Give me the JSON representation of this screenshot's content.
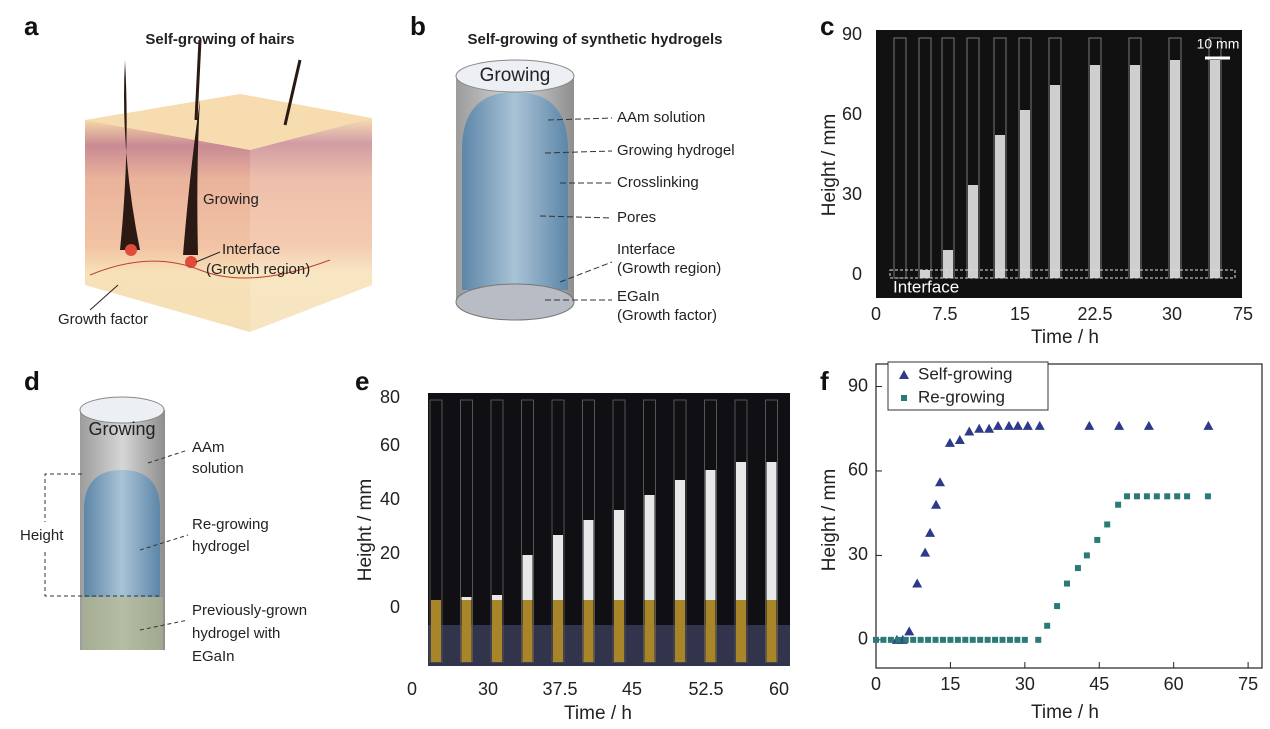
{
  "panel_a": {
    "letter": "a",
    "title": "Self-growing of hairs",
    "growing": "Growing",
    "interface": [
      "Interface",
      "(Growth region)"
    ],
    "growth_factor": "Growth factor"
  },
  "panel_b": {
    "letter": "b",
    "title": "Self-growing of synthetic hydrogels",
    "top": "Growing",
    "labels": [
      [
        "AAm solution"
      ],
      [
        "Growing hydrogel"
      ],
      [
        "Crosslinking"
      ],
      [
        "Pores"
      ],
      [
        "Interface",
        "(Growth region)"
      ],
      [
        "EGaIn",
        "(Growth factor)"
      ]
    ]
  },
  "panel_c": {
    "letter": "c",
    "scale_bar": "10 mm",
    "interface": "Interface",
    "y_label": "Height / mm",
    "x_label": "Time / h",
    "yticks": [
      "0",
      "30",
      "60",
      "90"
    ],
    "xticks": [
      "0",
      "7.5",
      "15",
      "22.5",
      "30",
      "75"
    ]
  },
  "panel_d": {
    "letter": "d",
    "top": "Growing",
    "height": "Height",
    "labels": [
      [
        "AAm",
        "solution"
      ],
      [
        "Re-growing",
        "hydrogel"
      ],
      [
        "Previously-grown",
        "hydrogel with",
        "EGaIn"
      ]
    ]
  },
  "panel_e": {
    "letter": "e",
    "y_label": "Height / mm",
    "x_label": "Time / h",
    "yticks": [
      "0",
      "20",
      "40",
      "60",
      "80"
    ],
    "xticks": [
      "0",
      "30",
      "37.5",
      "45",
      "52.5",
      "60"
    ]
  },
  "chart_data": {
    "type": "scatter",
    "panel_label": "f",
    "x_label": "Time / h",
    "y_label": "Height / mm",
    "xlim": [
      0,
      77.8
    ],
    "ylim": [
      -10,
      98
    ],
    "xticks": [
      0,
      15,
      30,
      45,
      60,
      75
    ],
    "yticks": [
      0,
      30,
      60,
      90
    ],
    "legend": "upper left",
    "series": [
      {
        "name": "Self-growing",
        "color": "#2e3a87",
        "marker": "triangle",
        "x": [
          4.2,
          5.4,
          6.7,
          8.3,
          9.9,
          10.9,
          12.1,
          12.9,
          14.9,
          16.9,
          18.8,
          20.8,
          22.8,
          24.6,
          26.8,
          28.6,
          30.6,
          33,
          43,
          49,
          55,
          67
        ],
        "values": [
          0,
          0,
          3,
          20,
          31,
          38,
          48,
          56,
          70,
          71,
          74,
          75,
          75,
          76,
          76,
          76,
          76,
          76,
          76,
          76,
          76,
          76
        ]
      },
      {
        "name": "Re-growing",
        "color": "#2a7a78",
        "marker": "square",
        "x": [
          0,
          1.5,
          3,
          4.5,
          6,
          7.5,
          9,
          10.5,
          12,
          13.5,
          15,
          16.5,
          18,
          19.5,
          21,
          22.5,
          24,
          25.5,
          27,
          28.5,
          30,
          32.7,
          34.5,
          36.5,
          38.5,
          40.7,
          42.5,
          44.6,
          46.6,
          48.8,
          50.6,
          52.6,
          54.6,
          56.6,
          58.7,
          60.7,
          62.7,
          66.9
        ],
        "values": [
          0,
          0,
          0,
          0,
          0,
          0,
          0,
          0,
          0,
          0,
          0,
          0,
          0,
          0,
          0,
          0,
          0,
          0,
          0,
          0,
          0,
          0,
          5,
          12,
          20,
          25.5,
          30,
          35.5,
          41,
          48,
          51,
          51,
          51,
          51,
          51,
          51,
          51,
          51
        ]
      }
    ]
  }
}
